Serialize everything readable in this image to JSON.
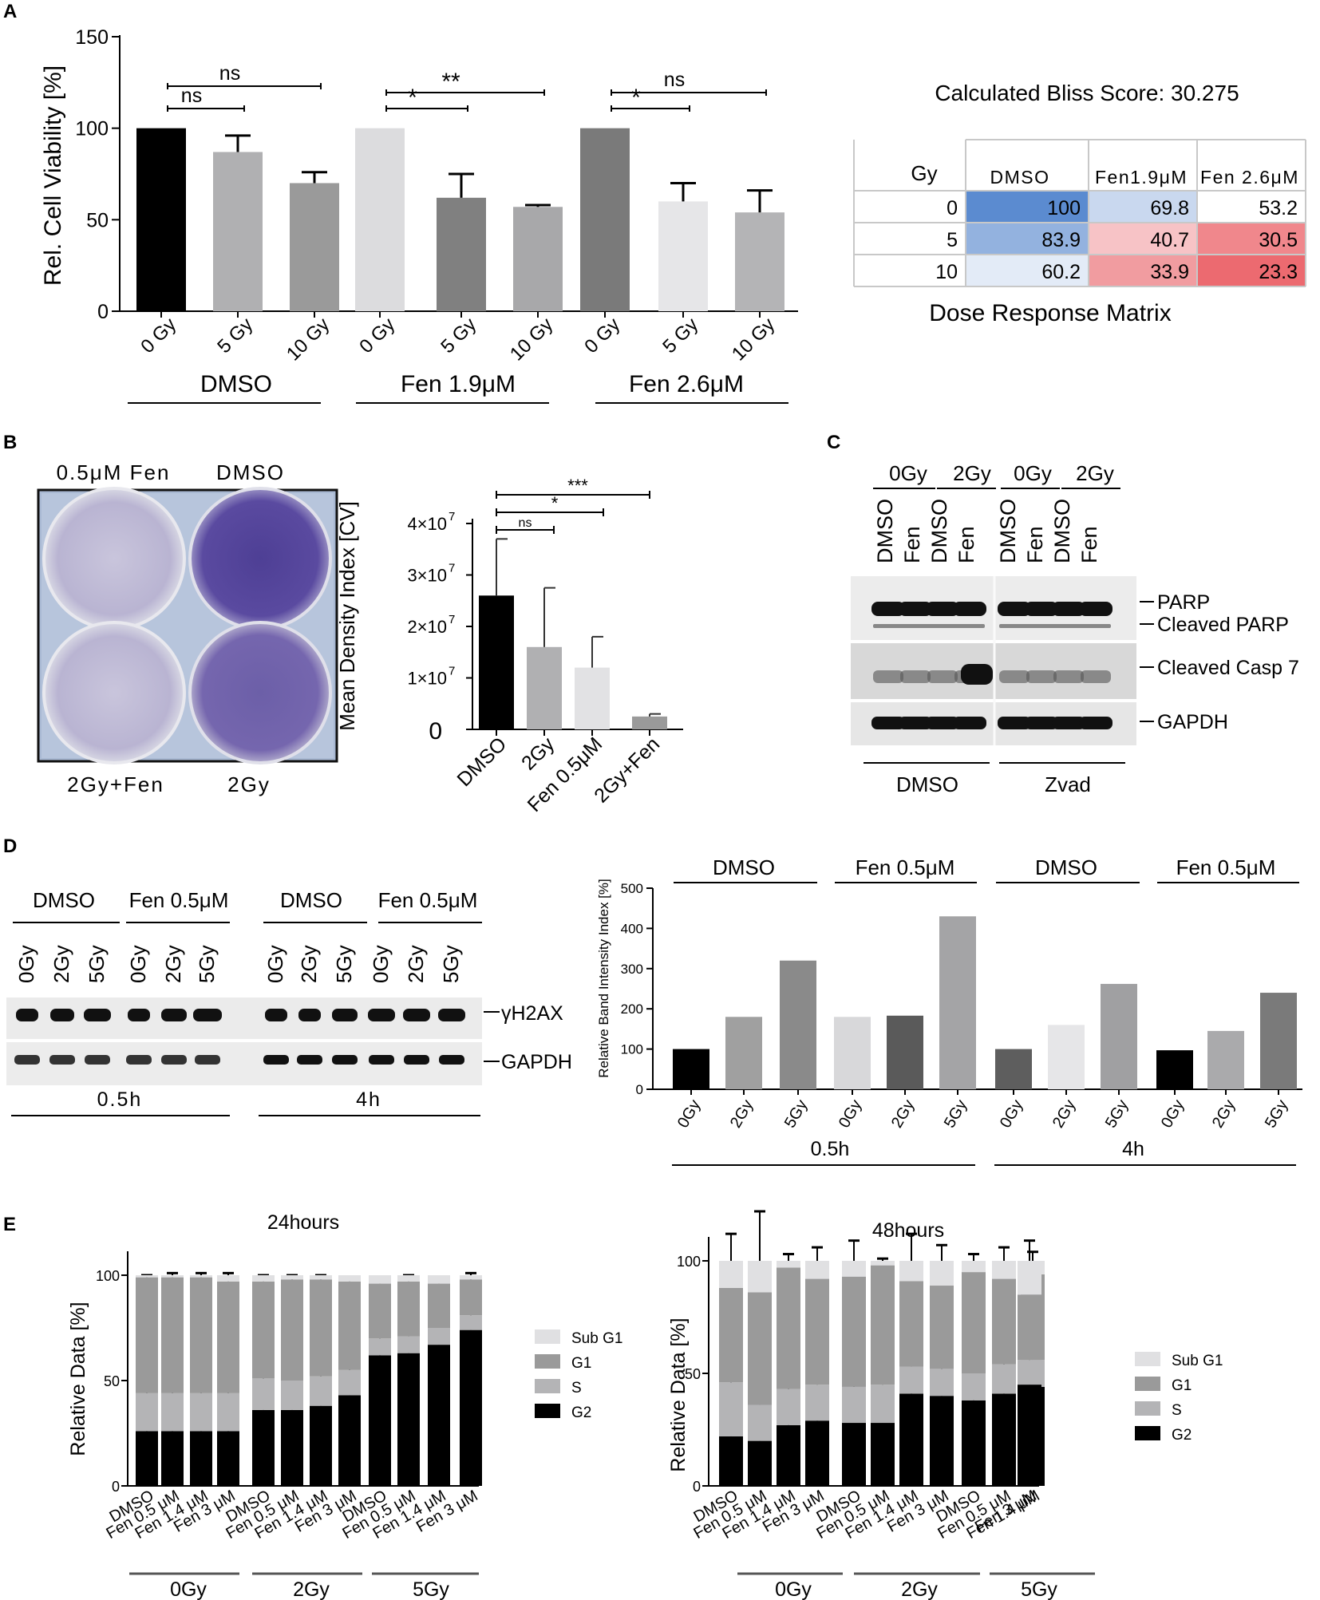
{
  "panel_labels": {
    "a": "A",
    "b": "B",
    "c": "C",
    "d": "D",
    "e": "E"
  },
  "colors": {
    "black": "#000000",
    "dark": "#5a5a5a",
    "mid": "#9a9a9a",
    "light": "#b4b4b6",
    "pale": "#e0e0e2"
  },
  "chart_data": [
    {
      "id": "A-bar",
      "type": "bar",
      "ylabel": "Rel. Cell Viability [%]",
      "ylim": [
        0,
        150
      ],
      "yticks": [
        "0",
        "50",
        "100",
        "150"
      ],
      "categories": [
        "0 Gy",
        "5 Gy",
        "10 Gy",
        "0 Gy",
        "5 Gy",
        "10 Gy",
        "0 Gy",
        "5 Gy",
        "10 Gy"
      ],
      "values": [
        100,
        87,
        70,
        100,
        62,
        57,
        100,
        60,
        54
      ],
      "errors": [
        0,
        9,
        6,
        0,
        13,
        1,
        0,
        10,
        12
      ],
      "bar_colors": [
        "#000000",
        "#b0b0b2",
        "#9a9a9a",
        "#dcdcde",
        "#808080",
        "#a8a8aa",
        "#7a7a7a",
        "#e6e6e8",
        "#b4b4b6"
      ],
      "groups": [
        "DMSO",
        "Fen 1.9μM",
        "Fen 2.6μM"
      ],
      "significance": [
        {
          "label": "ns"
        },
        {
          "label": "ns"
        },
        {
          "label": "*"
        },
        {
          "label": "**"
        },
        {
          "label": "*"
        },
        {
          "label": "ns"
        }
      ]
    },
    {
      "id": "A-matrix",
      "type": "table",
      "title": "Calculated Bliss Score: 30.275",
      "caption": "Dose Response Matrix",
      "corner": "Gy",
      "columns": [
        "DMSO",
        "Fen1.9μM",
        "Fen 2.6μM"
      ],
      "rows": [
        {
          "dose": "0",
          "values": [
            "100",
            "69.8",
            "53.2"
          ],
          "colors": [
            "#5b8bd0",
            "#c9d8ef",
            "#ffffff"
          ]
        },
        {
          "dose": "5",
          "values": [
            "83.9",
            "40.7",
            "30.5"
          ],
          "colors": [
            "#93b2df",
            "#f7c3c6",
            "#f0878c"
          ]
        },
        {
          "dose": "10",
          "values": [
            "60.2",
            "33.9",
            "23.3"
          ],
          "colors": [
            "#e3ebf7",
            "#f19ca0",
            "#ec6a70"
          ]
        }
      ]
    },
    {
      "id": "B-bar",
      "type": "bar",
      "ylabel": "Mean Density Index [CV]",
      "ylim": [
        0,
        40000000
      ],
      "ytick_bases": [
        "0",
        "1×10",
        "2×10",
        "3×10",
        "4×10"
      ],
      "ytick_exp": "7",
      "categories": [
        "DMSO",
        "2Gy",
        "Fen 0.5μM",
        "2Gy+Fen"
      ],
      "values": [
        26000000,
        16000000,
        12000000,
        2500000
      ],
      "errors": [
        11000000,
        11500000,
        6000000,
        500000
      ],
      "bar_colors": [
        "#000000",
        "#b0b0b2",
        "#e2e2e4",
        "#9a9a9a"
      ],
      "significance": [
        {
          "label": "ns"
        },
        {
          "label": "*"
        },
        {
          "label": "***"
        }
      ]
    },
    {
      "id": "D-bar",
      "type": "bar",
      "ylabel": "Relative Band Intensity Index [%]",
      "ylim": [
        0,
        500
      ],
      "yticks": [
        "0",
        "100",
        "200",
        "300",
        "400",
        "500"
      ],
      "categories": [
        "0Gy",
        "2Gy",
        "5Gy",
        "0Gy",
        "2Gy",
        "5Gy",
        "0Gy",
        "2Gy",
        "5Gy",
        "0Gy",
        "2Gy",
        "5Gy"
      ],
      "values": [
        100,
        180,
        320,
        180,
        183,
        430,
        100,
        160,
        262,
        97,
        145,
        240
      ],
      "bar_colors": [
        "#000000",
        "#a0a0a0",
        "#8a8a8a",
        "#d8d8da",
        "#5a5a5a",
        "#a4a4a6",
        "#5e5e5e",
        "#e6e6e8",
        "#a0a0a2",
        "#000000",
        "#aaaaac",
        "#7a7a7a"
      ],
      "groups_top": [
        "DMSO",
        "Fen 0.5μM",
        "DMSO",
        "Fen 0.5μM"
      ],
      "groups_bottom": [
        "0.5h",
        "4h"
      ]
    },
    {
      "id": "E-24h",
      "type": "bar",
      "title": "24hours",
      "ylabel": "Relative Data [%]",
      "ylim": [
        0,
        100
      ],
      "yticks": [
        "0",
        "50",
        "100"
      ],
      "categories": [
        "DMSO",
        "Fen 0.5 μM",
        "Fen 1.4 μM",
        "Fen 3 μM",
        "DMSO",
        "Fen 0.5 μM",
        "Fen 1.4 μM",
        "Fen 3 μM",
        "DMSO",
        "Fen 0.5 μM",
        "Fen 1.4 μM",
        "Fen 3 μM"
      ],
      "groups": [
        "0Gy",
        "2Gy",
        "5Gy"
      ],
      "series": [
        {
          "name": "G2",
          "color": "#000000",
          "values": [
            26,
            26,
            26,
            26,
            36,
            36,
            38,
            43,
            62,
            63,
            67,
            74
          ],
          "errors": [
            5,
            3,
            2,
            3,
            6,
            5,
            3,
            6,
            4,
            5,
            4,
            5
          ]
        },
        {
          "name": "S",
          "color": "#b4b4b6",
          "values": [
            18,
            18,
            18,
            18,
            15,
            14,
            14,
            12,
            8,
            8,
            8,
            7
          ],
          "errors": [
            4,
            4,
            3,
            2,
            3,
            3,
            2,
            3,
            2,
            2,
            2,
            2
          ]
        },
        {
          "name": "G1",
          "color": "#9a9a9a",
          "values": [
            55,
            55,
            55,
            53,
            46,
            48,
            46,
            42,
            26,
            26,
            21,
            17
          ],
          "errors": [
            1,
            2,
            2,
            4,
            3,
            2,
            2,
            2,
            3,
            3,
            3,
            3
          ]
        },
        {
          "name": "Sub G1",
          "color": "#e0e0e2",
          "values": [
            1,
            1,
            1,
            3,
            3,
            2,
            2,
            3,
            4,
            3,
            4,
            2
          ],
          "errors": [
            0,
            0,
            0,
            0,
            0,
            0,
            0,
            0,
            0,
            0,
            0,
            0
          ]
        }
      ],
      "legend_order": [
        "Sub G1",
        "G1",
        "S",
        "G2"
      ]
    },
    {
      "id": "E-48h",
      "type": "bar",
      "title": "48hours",
      "ylabel": "Relative Data [%]",
      "ylim": [
        0,
        100
      ],
      "yticks": [
        "0",
        "50",
        "100"
      ],
      "categories": [
        "DMSO",
        "Fen 0.5 μM",
        "Fen 1.4 μM",
        "Fen 3 μM",
        "DMSO",
        "Fen 0.5 μM",
        "Fen 1.4 μM",
        "Fen 3 μM",
        "DMSO",
        "Fen 0.5 μM",
        "Fen 1.4 μM",
        "Fen 3 μM"
      ],
      "groups": [
        "0Gy",
        "2Gy",
        "5Gy"
      ],
      "series": [
        {
          "name": "G2",
          "color": "#000000",
          "values": [
            22,
            20,
            27,
            29,
            28,
            28,
            41,
            40,
            38,
            41,
            44,
            45
          ],
          "errors": [
            15,
            12,
            8,
            9,
            7,
            4,
            5,
            3,
            6,
            10,
            7,
            9
          ]
        },
        {
          "name": "S",
          "color": "#b4b4b6",
          "values": [
            24,
            16,
            16,
            16,
            16,
            17,
            12,
            12,
            12,
            13,
            12,
            11
          ],
          "errors": [
            2,
            2,
            2,
            2,
            2,
            2,
            2,
            2,
            2,
            2,
            2,
            2
          ]
        },
        {
          "name": "G1",
          "color": "#9a9a9a",
          "values": [
            42,
            50,
            54,
            47,
            49,
            53,
            38,
            37,
            45,
            38,
            38,
            29
          ],
          "errors": [
            0,
            0,
            0,
            0,
            0,
            0,
            0,
            0,
            0,
            0,
            0,
            0
          ]
        },
        {
          "name": "Sub G1",
          "color": "#e0e0e2",
          "values": [
            12,
            14,
            3,
            8,
            7,
            2,
            9,
            11,
            5,
            8,
            6,
            15
          ],
          "errors": [
            12,
            22,
            3,
            6,
            9,
            1,
            12,
            7,
            3,
            6,
            4,
            9
          ]
        }
      ],
      "legend_order": [
        "Sub G1",
        "G1",
        "S",
        "G2"
      ]
    }
  ],
  "panel_b_plate": {
    "top_labels": [
      "0.5μM Fen",
      "DMSO"
    ],
    "bottom_labels": [
      "2Gy+Fen",
      "2Gy"
    ]
  },
  "panel_c_blot": {
    "doses": [
      "0Gy",
      "2Gy",
      "0Gy",
      "2Gy"
    ],
    "lanes": [
      "DMSO",
      "Fen",
      "DMSO",
      "Fen",
      "DMSO",
      "Fen",
      "DMSO",
      "Fen"
    ],
    "bands": [
      "PARP",
      "Cleaved PARP",
      "Cleaved Casp 7",
      "GAPDH"
    ],
    "bottom": [
      "DMSO",
      "Zvad"
    ]
  },
  "panel_d_blot": {
    "treat": [
      "DMSO",
      "Fen 0.5μM",
      "DMSO",
      "Fen 0.5μM"
    ],
    "lanes": [
      "0Gy",
      "2Gy",
      "5Gy",
      "0Gy",
      "2Gy",
      "5Gy",
      "0Gy",
      "2Gy",
      "5Gy",
      "0Gy",
      "2Gy",
      "5Gy"
    ],
    "bands": [
      "γH2AX",
      "GAPDH"
    ],
    "times": [
      "0.5h",
      "4h"
    ]
  }
}
